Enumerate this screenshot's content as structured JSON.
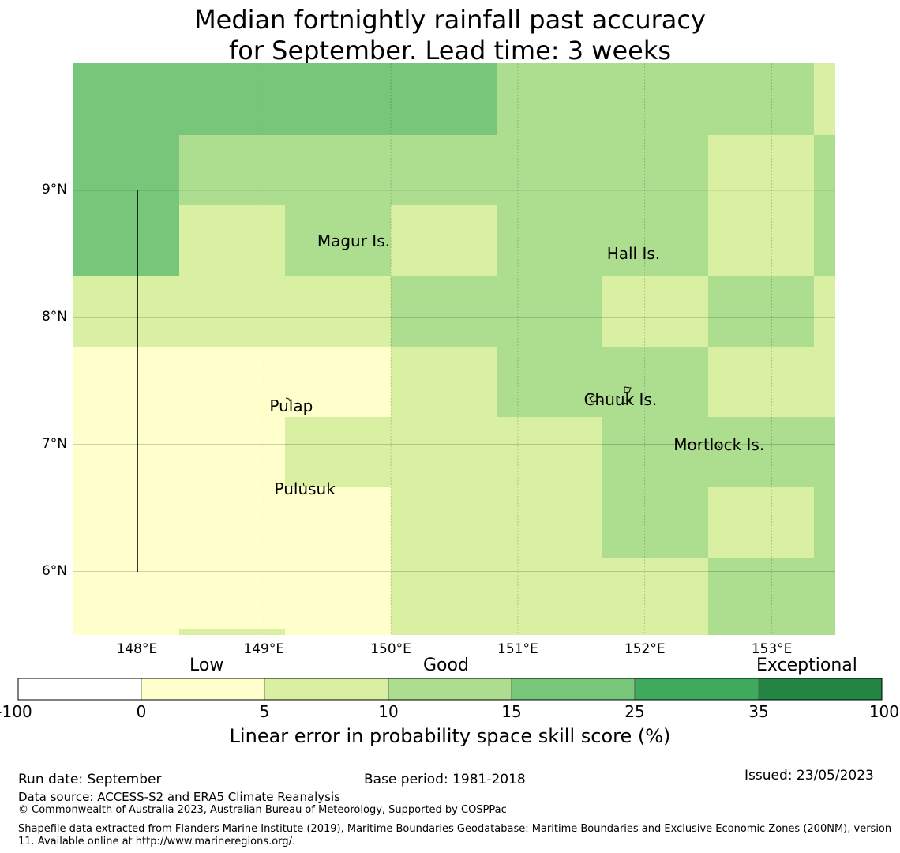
{
  "title_line1": "Median fortnightly rainfall past accuracy",
  "title_line2": "for September. Lead time: 3 weeks",
  "map": {
    "lon_range": [
      147.5,
      153.5
    ],
    "lat_range": [
      5.5,
      10.0
    ],
    "lat_ticks": [
      {
        "value": 9,
        "label": "9°N"
      },
      {
        "value": 8,
        "label": "8°N"
      },
      {
        "value": 7,
        "label": "7°N"
      },
      {
        "value": 6,
        "label": "6°N"
      }
    ],
    "lon_ticks": [
      {
        "value": 148,
        "label": "148°E"
      },
      {
        "value": 149,
        "label": "149°E"
      },
      {
        "value": 150,
        "label": "150°E"
      },
      {
        "value": 151,
        "label": "151°E"
      },
      {
        "value": 152,
        "label": "152°E"
      },
      {
        "value": 153,
        "label": "153°E"
      }
    ],
    "places": [
      {
        "name": "Magur Is.",
        "lon": 149.7,
        "lat": 8.6
      },
      {
        "name": "Hall Is.",
        "lon": 151.95,
        "lat": 8.5
      },
      {
        "name": "Pulap",
        "lon": 149.2,
        "lat": 7.3
      },
      {
        "name": "Chuuk Is.",
        "lon": 151.8,
        "lat": 7.35
      },
      {
        "name": "Mortlock Is.",
        "lon": 152.6,
        "lat": 7.0
      },
      {
        "name": "Pulusuk",
        "lon": 149.3,
        "lat": 6.65
      }
    ]
  },
  "colors": {
    "c0": "#ffffcc",
    "c1": "#d9f0a3",
    "c2": "#addd8e",
    "c3": "#78c679",
    "c4": "#41ab5d",
    "c5": "#238443",
    "white": "#ffffff"
  },
  "legend": {
    "categories": {
      "low": "Low",
      "good": "Good",
      "exceptional": "Exceptional"
    },
    "ticks": [
      "-100",
      "0",
      "5",
      "10",
      "15",
      "25",
      "35",
      "100"
    ],
    "title": "Linear error in probability space skill score (%)"
  },
  "footer": {
    "run_date": "Run date: September",
    "base_period": "Base period: 1981-2018",
    "issued": "Issued: 23/05/2023",
    "data_source": "Data source: ACCESS-S2 and ERA5 Climate Reanalysis",
    "copyright": "© Commonwealth of Australia 2023, Australian Bureau of Meteorology, Supported by COSPPac",
    "shapefile": "Shapefile data extracted from Flanders Marine Institute (2019), Maritime Boundaries Geodatabase: Maritime Boundaries and Exclusive Economic Zones (200NM), version 11. Available online at http://www.marineregions.org/."
  }
}
